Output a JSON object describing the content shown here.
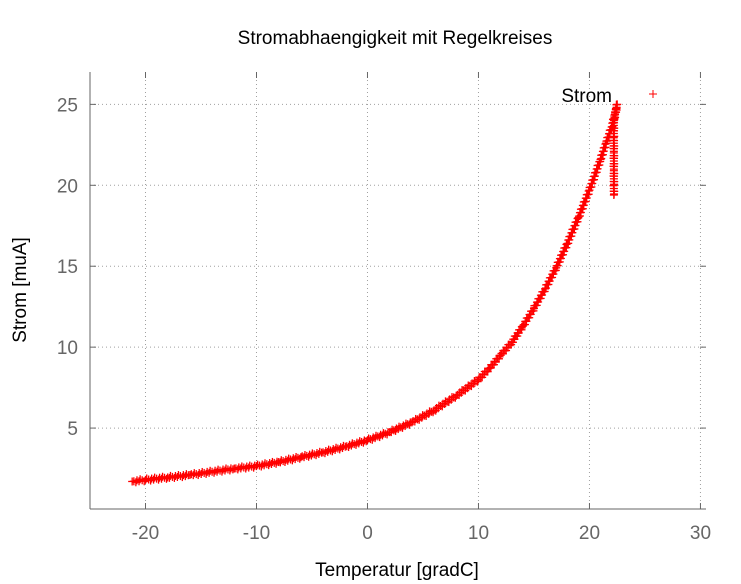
{
  "chart_data": {
    "type": "scatter",
    "title": "Stromabhaengigkeit mit Regelkreises",
    "xlabel": "Temperatur [gradC]",
    "ylabel": "Strom [muA]",
    "xlim": [
      -25,
      30.5
    ],
    "ylim": [
      0,
      27
    ],
    "xticks": [
      -20,
      -10,
      0,
      10,
      20,
      30
    ],
    "yticks": [
      5,
      10,
      15,
      20,
      25
    ],
    "grid": true,
    "legend": {
      "position": "top-right",
      "entries": [
        "Strom"
      ]
    },
    "series": [
      {
        "name": "Strom",
        "color": "#ff0000",
        "marker": "plus",
        "x": [
          -21.2,
          -20.0,
          -18.0,
          -16.0,
          -14.0,
          -12.0,
          -10.0,
          -8.0,
          -6.0,
          -4.0,
          -2.0,
          0.0,
          2.0,
          4.0,
          6.0,
          8.0,
          10.0,
          11.0,
          12.0,
          13.0,
          14.0,
          15.0,
          16.0,
          17.0,
          18.0,
          19.0,
          20.0,
          21.0,
          21.5,
          22.0,
          22.3,
          22.5,
          22.2,
          22.2,
          22.2,
          22.2,
          22.2,
          22.2
        ],
        "y": [
          1.7,
          1.8,
          1.95,
          2.1,
          2.3,
          2.5,
          2.65,
          2.9,
          3.2,
          3.5,
          3.85,
          4.25,
          4.75,
          5.35,
          6.1,
          7.0,
          8.0,
          8.7,
          9.5,
          10.3,
          11.3,
          12.4,
          13.6,
          14.9,
          16.4,
          18.0,
          19.7,
          21.6,
          22.6,
          23.6,
          24.4,
          25.0,
          24.0,
          23.0,
          22.0,
          21.0,
          20.0,
          19.4
        ]
      }
    ]
  }
}
